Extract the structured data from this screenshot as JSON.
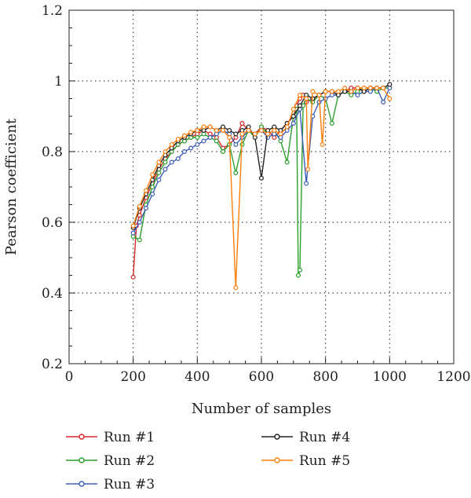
{
  "chart_data": {
    "type": "line",
    "xlabel": "Number of samples",
    "ylabel": "Pearson coefficient",
    "xlim": [
      0,
      1200
    ],
    "ylim": [
      0.2,
      1.2
    ],
    "x_ticks": [
      0,
      200,
      400,
      600,
      800,
      1000,
      1200
    ],
    "y_ticks": [
      0.2,
      0.4,
      0.6,
      0.8,
      1,
      1.2
    ],
    "x_tick_labels": [
      "0",
      "200",
      "400",
      "600",
      "800",
      "1000",
      "1200"
    ],
    "y_tick_labels": [
      "0.2",
      "0.4",
      "0.6",
      "0.8",
      "1",
      "1.2"
    ],
    "grid": "dotted",
    "legend_position": "bottom",
    "series": [
      {
        "name": "Run #1",
        "color": "#d62728",
        "x": [
          200,
          210,
          220,
          240,
          260,
          280,
          300,
          320,
          340,
          360,
          380,
          400,
          420,
          440,
          460,
          480,
          500,
          520,
          540,
          560,
          580,
          600,
          620,
          640,
          660,
          680,
          700,
          710,
          720,
          730,
          740,
          760,
          780,
          800,
          820,
          840,
          860,
          880,
          900,
          920,
          940,
          960,
          980,
          1000
        ],
        "y": [
          0.445,
          0.59,
          0.62,
          0.67,
          0.71,
          0.75,
          0.78,
          0.8,
          0.82,
          0.83,
          0.84,
          0.85,
          0.86,
          0.85,
          0.84,
          0.81,
          0.82,
          0.84,
          0.88,
          0.86,
          0.85,
          0.87,
          0.86,
          0.84,
          0.86,
          0.88,
          0.9,
          0.93,
          0.95,
          0.96,
          0.94,
          0.95,
          0.96,
          0.97,
          0.97,
          0.96,
          0.97,
          0.98,
          0.98,
          0.97,
          0.98,
          0.98,
          0.98,
          0.99
        ]
      },
      {
        "name": "Run #2",
        "color": "#2ca02c",
        "x": [
          200,
          220,
          240,
          260,
          280,
          300,
          320,
          340,
          360,
          380,
          400,
          420,
          440,
          460,
          480,
          500,
          520,
          540,
          560,
          580,
          600,
          620,
          640,
          660,
          680,
          700,
          710,
          715,
          720,
          730,
          740,
          760,
          780,
          800,
          820,
          840,
          860,
          880,
          900,
          920,
          940,
          960,
          980,
          1000
        ],
        "y": [
          0.56,
          0.55,
          0.65,
          0.7,
          0.74,
          0.77,
          0.8,
          0.82,
          0.83,
          0.84,
          0.84,
          0.85,
          0.84,
          0.83,
          0.8,
          0.82,
          0.74,
          0.82,
          0.86,
          0.84,
          0.87,
          0.85,
          0.86,
          0.83,
          0.77,
          0.9,
          0.92,
          0.45,
          0.465,
          0.93,
          0.95,
          0.94,
          0.96,
          0.95,
          0.88,
          0.96,
          0.97,
          0.96,
          0.97,
          0.98,
          0.98,
          0.97,
          0.98,
          0.98
        ]
      },
      {
        "name": "Run #3",
        "color": "#3d5db5",
        "x": [
          200,
          220,
          240,
          260,
          280,
          300,
          320,
          340,
          360,
          380,
          400,
          420,
          440,
          460,
          480,
          500,
          520,
          540,
          560,
          580,
          600,
          620,
          640,
          660,
          680,
          700,
          720,
          740,
          760,
          780,
          800,
          820,
          840,
          860,
          880,
          900,
          920,
          940,
          960,
          980,
          1000
        ],
        "y": [
          0.57,
          0.6,
          0.64,
          0.68,
          0.72,
          0.75,
          0.77,
          0.78,
          0.8,
          0.81,
          0.82,
          0.83,
          0.84,
          0.85,
          0.86,
          0.85,
          0.82,
          0.84,
          0.86,
          0.85,
          0.86,
          0.84,
          0.85,
          0.84,
          0.86,
          0.88,
          0.92,
          0.71,
          0.9,
          0.94,
          0.95,
          0.96,
          0.96,
          0.97,
          0.97,
          0.96,
          0.97,
          0.97,
          0.98,
          0.94,
          0.98
        ]
      },
      {
        "name": "Run #4",
        "color": "#222222",
        "x": [
          200,
          220,
          240,
          260,
          280,
          300,
          320,
          340,
          360,
          380,
          400,
          420,
          440,
          460,
          480,
          500,
          520,
          540,
          560,
          580,
          600,
          620,
          640,
          660,
          680,
          700,
          720,
          740,
          760,
          780,
          800,
          820,
          840,
          860,
          880,
          900,
          920,
          940,
          960,
          980,
          1000
        ],
        "y": [
          0.585,
          0.64,
          0.68,
          0.72,
          0.76,
          0.79,
          0.81,
          0.83,
          0.84,
          0.85,
          0.86,
          0.86,
          0.87,
          0.86,
          0.87,
          0.86,
          0.85,
          0.86,
          0.87,
          0.84,
          0.725,
          0.86,
          0.87,
          0.86,
          0.88,
          0.9,
          0.93,
          0.96,
          0.95,
          0.96,
          0.97,
          0.97,
          0.96,
          0.97,
          0.97,
          0.98,
          0.97,
          0.98,
          0.98,
          0.98,
          0.99
        ]
      },
      {
        "name": "Run #5",
        "color": "#ff7f0e",
        "x": [
          200,
          220,
          240,
          260,
          280,
          300,
          320,
          340,
          360,
          380,
          400,
          420,
          440,
          460,
          480,
          500,
          520,
          540,
          560,
          580,
          600,
          620,
          640,
          660,
          680,
          700,
          720,
          740,
          745,
          760,
          780,
          790,
          800,
          820,
          840,
          860,
          880,
          900,
          920,
          940,
          960,
          980,
          1000
        ],
        "y": [
          0.59,
          0.645,
          0.69,
          0.735,
          0.77,
          0.8,
          0.82,
          0.835,
          0.845,
          0.855,
          0.86,
          0.87,
          0.87,
          0.86,
          0.86,
          0.84,
          0.415,
          0.85,
          0.86,
          0.85,
          0.86,
          0.85,
          0.86,
          0.85,
          0.87,
          0.92,
          0.96,
          0.95,
          0.75,
          0.97,
          0.96,
          0.82,
          0.97,
          0.97,
          0.97,
          0.98,
          0.97,
          0.98,
          0.98,
          0.98,
          0.98,
          0.98,
          0.95
        ]
      }
    ]
  }
}
